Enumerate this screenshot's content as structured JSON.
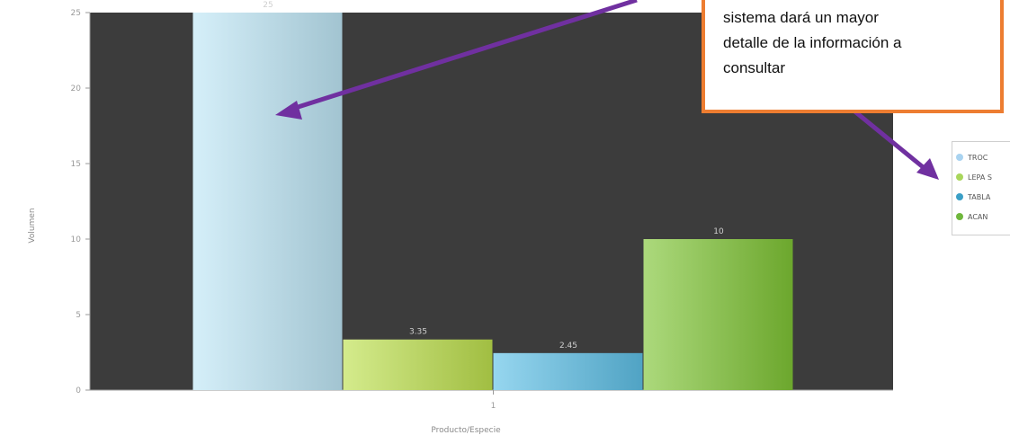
{
  "chart_data": {
    "type": "bar",
    "categories": [
      "1"
    ],
    "series": [
      {
        "name": "TROC",
        "values": [
          25
        ],
        "label": "25",
        "color": "#bfe6f6"
      },
      {
        "name": "LEPA",
        "values": [
          3.35
        ],
        "label": "3.35",
        "color": "#bde04e"
      },
      {
        "name": "TABLA",
        "values": [
          2.45
        ],
        "label": "2.45",
        "color": "#5ec0e6"
      },
      {
        "name": "ACAN",
        "values": [
          10
        ],
        "label": "10",
        "color": "#7fc435"
      }
    ],
    "title": "",
    "xlabel": "Producto/Especie",
    "ylabel": "Volumen",
    "ylim": [
      0,
      25
    ],
    "yticks": [
      0,
      5,
      10,
      15,
      20,
      25
    ],
    "grid": false,
    "legend": "right",
    "plot_background": "#3c3c3c"
  },
  "legend_items": [
    {
      "label": "TROC",
      "color": "#a9d3f0"
    },
    {
      "label": "LEPA S",
      "color": "#a9d65c"
    },
    {
      "label": "TABLA",
      "color": "#3a9fc6"
    },
    {
      "label": "ACAN",
      "color": "#6fb73c"
    }
  ],
  "callout": {
    "lines": [
      "sistema dará un mayor",
      "detalle de la información a",
      "consultar"
    ],
    "border_color": "#ed7d31",
    "arrow_color": "#7030a0"
  }
}
